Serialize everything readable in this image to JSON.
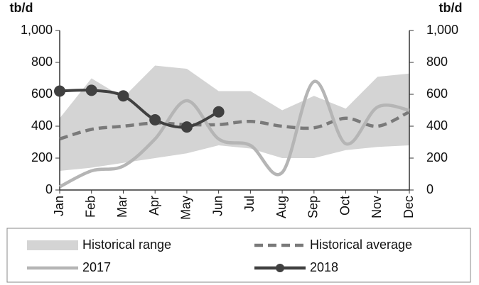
{
  "chart_data": {
    "type": "line",
    "y_label": "tb/d",
    "y2_label": "tb/d",
    "categories": [
      "Jan",
      "Feb",
      "Mar",
      "Apr",
      "May",
      "Jun",
      "Jul",
      "Aug",
      "Sep",
      "Oct",
      "Nov",
      "Dec"
    ],
    "ylim": [
      0,
      1000
    ],
    "yticks": [
      0,
      200,
      400,
      600,
      800,
      {
        "value": 1000,
        "label": "1,000"
      }
    ],
    "y2lim": [
      0,
      1000
    ],
    "y2ticks": [
      0,
      200,
      400,
      600,
      800,
      {
        "value": 1000,
        "label": "1,000"
      }
    ],
    "legend": "bottom",
    "range": {
      "name": "Historical range",
      "color": "#d4d4d4",
      "low": [
        120,
        140,
        170,
        200,
        230,
        280,
        260,
        200,
        200,
        250,
        270,
        280
      ],
      "high": [
        450,
        700,
        580,
        780,
        760,
        620,
        620,
        500,
        590,
        510,
        710,
        730
      ]
    },
    "series": [
      {
        "name": "Historical average",
        "color": "#7a7a7a",
        "dashed": true,
        "values": [
          320,
          380,
          400,
          420,
          410,
          410,
          430,
          400,
          390,
          450,
          400,
          490
        ]
      },
      {
        "name": "2017",
        "color": "#b5b5b5",
        "values": [
          20,
          120,
          150,
          320,
          560,
          320,
          280,
          110,
          680,
          290,
          520,
          500
        ]
      },
      {
        "name": "2018",
        "color": "#404040",
        "markers": true,
        "values": [
          620,
          625,
          590,
          440,
          395,
          490,
          null,
          null,
          null,
          null,
          null,
          null
        ]
      }
    ]
  }
}
